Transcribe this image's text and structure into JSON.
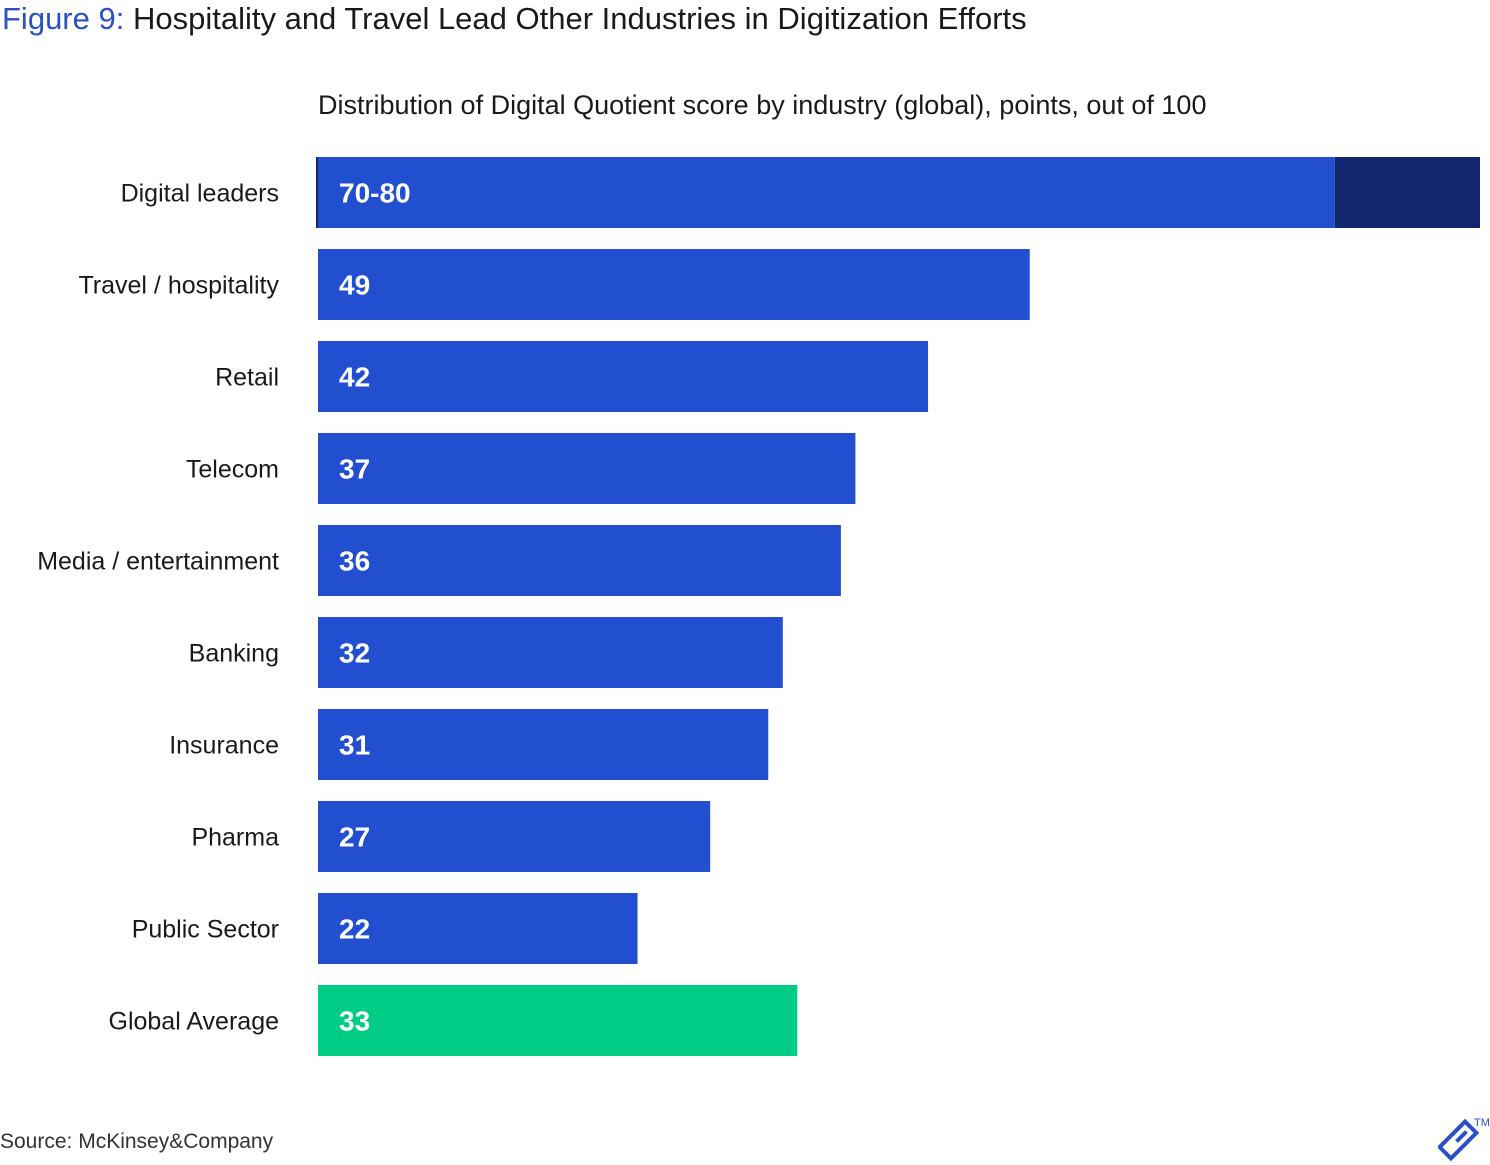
{
  "figure": {
    "number": "Figure 9:",
    "title": "Hospitality and Travel Lead Other Industries in Digitization Efforts"
  },
  "source": "Source: McKinsey&Company",
  "logo": {
    "icon": "toptal-logo",
    "trademark": "TM"
  },
  "colors": {
    "bar": "#224fcf",
    "leader_range": "#12256f",
    "average": "#00cc85",
    "title_accent": "#2a50c8"
  },
  "chart_data": {
    "type": "bar",
    "orientation": "horizontal",
    "title": "Distribution of Digital Quotient score by industry (global), points, out of 100",
    "xlim": [
      0,
      80
    ],
    "categories": [
      "Digital leaders",
      "Travel / hospitality",
      "Retail",
      "Telecom",
      "Media / entertainment",
      "Banking",
      "Insurance",
      "Pharma",
      "Public Sector",
      "Global Average"
    ],
    "values": [
      70,
      49,
      42,
      37,
      36,
      32,
      31,
      27,
      22,
      33
    ],
    "range_end": [
      80,
      null,
      null,
      null,
      null,
      null,
      null,
      null,
      null,
      null
    ],
    "labels": [
      "70-80",
      "49",
      "42",
      "37",
      "36",
      "32",
      "31",
      "27",
      "22",
      "33"
    ],
    "highlight": [
      "range",
      "default",
      "default",
      "default",
      "default",
      "default",
      "default",
      "default",
      "default",
      "average"
    ],
    "grid": false,
    "legend": "none"
  }
}
